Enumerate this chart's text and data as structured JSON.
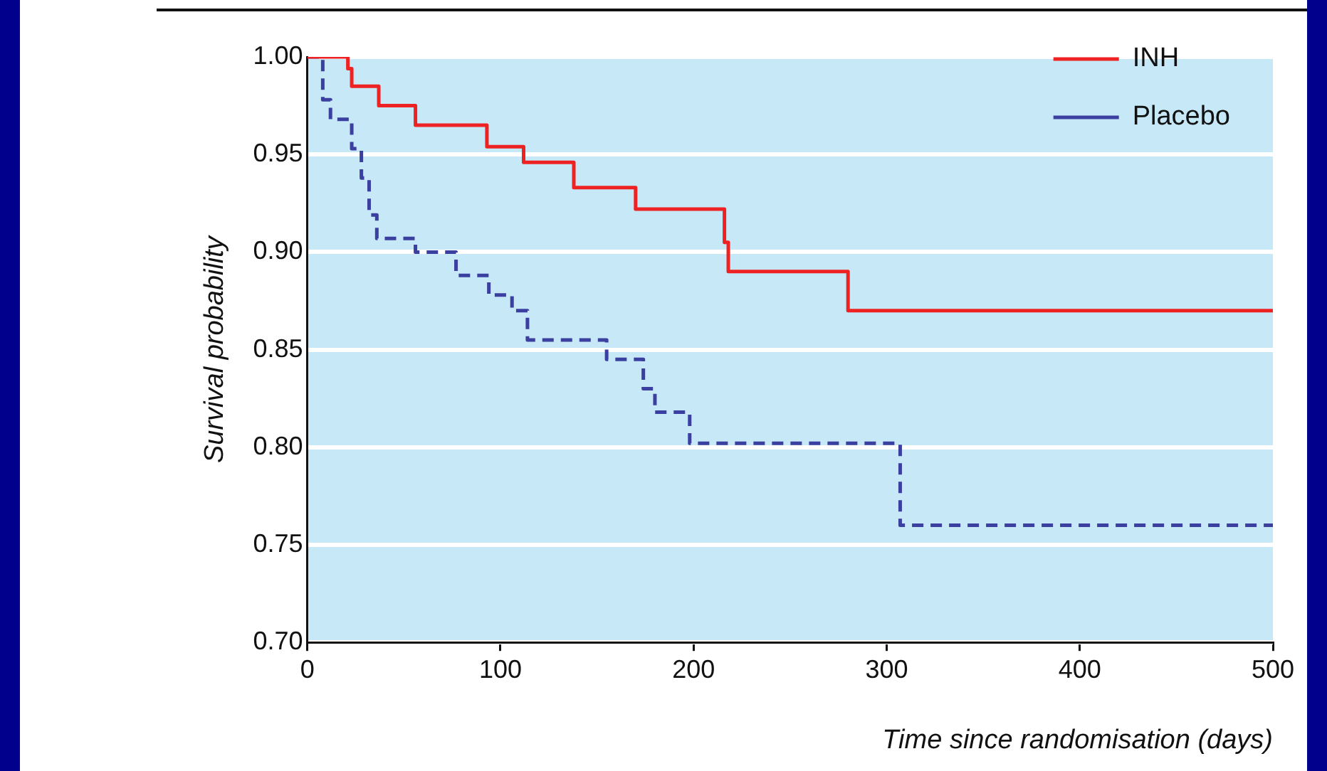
{
  "chart_data": {
    "type": "step",
    "xlabel": "Time since randomisation (days)",
    "ylabel": "Survival probability",
    "xlim": [
      0,
      500
    ],
    "xticks": [
      0,
      100,
      200,
      300,
      400,
      500
    ],
    "ylim": [
      0.7,
      1.0
    ],
    "yticks": [
      {
        "value": 0.7,
        "label": "0.70"
      },
      {
        "value": 0.75,
        "label": "0.75"
      },
      {
        "value": 0.8,
        "label": "0.80"
      },
      {
        "value": 0.85,
        "label": "0.85"
      },
      {
        "value": 0.9,
        "label": "0.90"
      },
      {
        "value": 0.95,
        "label": "0.95"
      },
      {
        "value": 1.0,
        "label": "1.00"
      }
    ],
    "grid": "y",
    "legend": "top right",
    "series": [
      {
        "name": "INH",
        "color": "#ee2222",
        "line_style": "solid",
        "x": [
          0,
          21,
          23,
          37,
          56,
          93,
          112,
          138,
          170,
          216,
          218,
          280,
          500
        ],
        "values": [
          1.0,
          0.994,
          0.985,
          0.975,
          0.965,
          0.954,
          0.946,
          0.933,
          0.922,
          0.905,
          0.89,
          0.87,
          0.87
        ]
      },
      {
        "name": "Placebo",
        "color": "#3a3fa0",
        "line_style": "dashed",
        "x": [
          0,
          8,
          12,
          23,
          28,
          32,
          36,
          56,
          77,
          94,
          106,
          114,
          155,
          174,
          180,
          198,
          307,
          500
        ],
        "values": [
          1.0,
          0.978,
          0.968,
          0.953,
          0.938,
          0.919,
          0.907,
          0.9,
          0.888,
          0.878,
          0.87,
          0.855,
          0.845,
          0.83,
          0.818,
          0.802,
          0.76,
          0.76
        ]
      }
    ]
  }
}
